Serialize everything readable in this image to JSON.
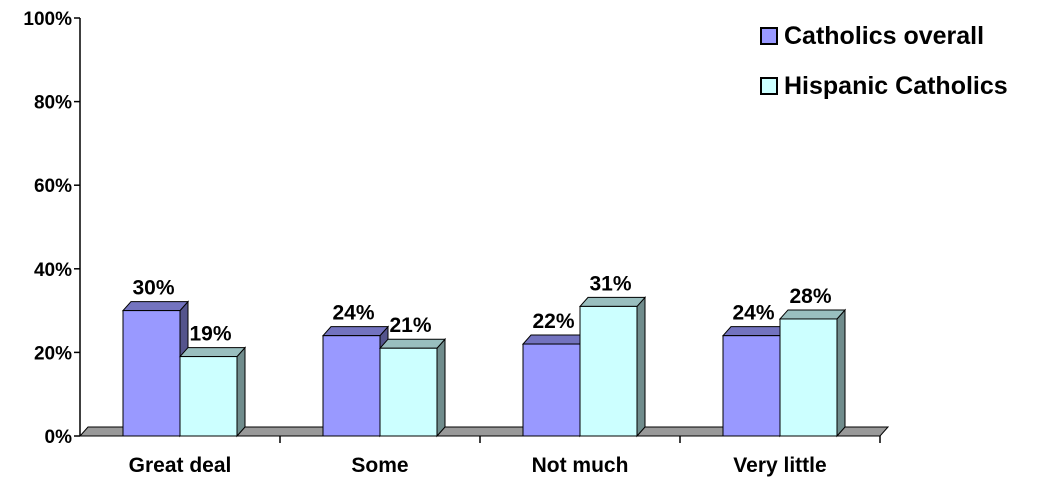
{
  "chart_data": {
    "type": "bar",
    "categories": [
      "Great deal",
      "Some",
      "Not much",
      "Very little"
    ],
    "series": [
      {
        "name": "Catholics overall",
        "values": [
          30,
          24,
          22,
          24
        ],
        "labels": [
          "30%",
          "24%",
          "22%",
          "24%"
        ],
        "color": "#9999ff"
      },
      {
        "name": "Hispanic Catholics",
        "values": [
          19,
          21,
          31,
          28
        ],
        "labels": [
          "19%",
          "21%",
          "31%",
          "28%"
        ],
        "color": "#ccffff"
      }
    ],
    "y_ticks": [
      "0%",
      "20%",
      "40%",
      "60%",
      "80%",
      "100%"
    ],
    "ylim": [
      0,
      100
    ],
    "grid": false,
    "legend_position": "top-right",
    "three_d": true
  }
}
